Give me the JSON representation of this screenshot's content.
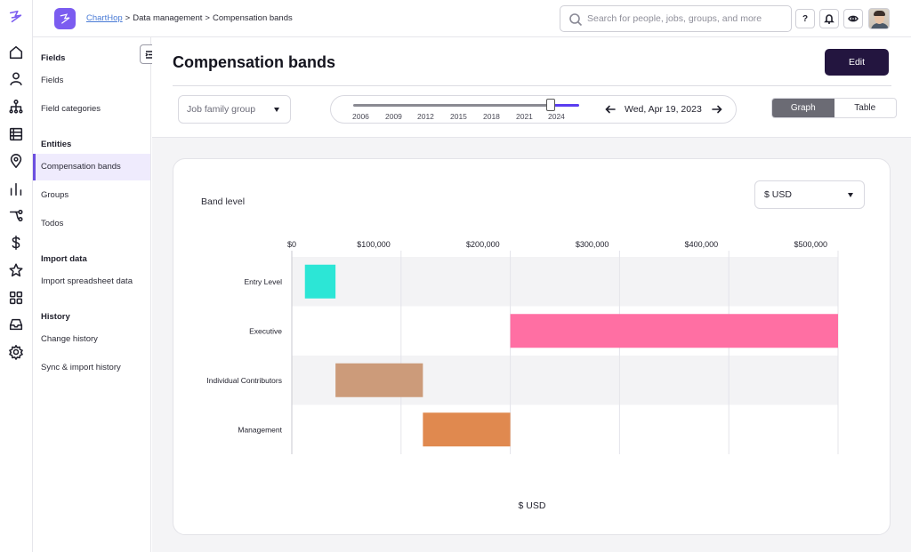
{
  "nav_rail": {
    "icons": [
      "chart-hop-logo-icon",
      "home-icon",
      "person-icon",
      "org-chart-icon",
      "table-icon",
      "location-icon",
      "bar-chart-icon",
      "workflow-icon",
      "dollar-icon",
      "star-icon",
      "apps-grid-icon",
      "inbox-icon",
      "settings-gear-icon"
    ]
  },
  "topbar": {
    "breadcrumb": [
      "ChartHop",
      "Data management",
      "Compensation bands"
    ],
    "breadcrumb_sep": ">",
    "search_placeholder": "Search for people, jobs, groups, and more",
    "help_label": "?"
  },
  "leftnav": {
    "sections": [
      {
        "heading": "Fields",
        "items": [
          "Fields",
          "Field categories"
        ]
      },
      {
        "heading": "Entities",
        "items": [
          "Compensation bands",
          "Groups",
          "Todos"
        ]
      },
      {
        "heading": "Import data",
        "items": [
          "Import spreadsheet data"
        ]
      },
      {
        "heading": "History",
        "items": [
          "Change history",
          "Sync & import history"
        ]
      }
    ],
    "active_item": "Compensation bands"
  },
  "page": {
    "title": "Compensation bands",
    "edit_label": "Edit",
    "group_select": "Job family group",
    "timeline_years": [
      "2006",
      "2009",
      "2012",
      "2015",
      "2018",
      "2021",
      "2024"
    ],
    "timeline_position": 0.95,
    "date": "Wed, Apr 19, 2023",
    "view_options": [
      "Graph",
      "Table"
    ],
    "active_view": "Graph",
    "currency": "$ USD"
  },
  "chart_data": {
    "type": "bar",
    "orientation": "horizontal-range",
    "title": "Band level",
    "xlabel": "$ USD",
    "xlim": [
      0,
      500000
    ],
    "x_ticks": [
      "$0",
      "$100,000",
      "$200,000",
      "$300,000",
      "$400,000",
      "$500,000"
    ],
    "x_tick_values": [
      0,
      100000,
      200000,
      300000,
      400000,
      500000
    ],
    "categories": [
      "Entry Level",
      "Executive",
      "Individual Contributors",
      "Management"
    ],
    "ranges": [
      [
        12000,
        40000
      ],
      [
        200000,
        500000
      ],
      [
        40000,
        120000
      ],
      [
        120000,
        200000
      ]
    ],
    "colors": [
      "#2ce6d6",
      "#ff6fa3",
      "#cc9b7a",
      "#e0894f"
    ]
  }
}
